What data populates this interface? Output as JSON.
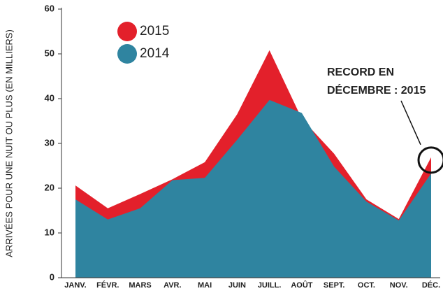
{
  "chart_data": {
    "type": "area",
    "ylabel": "ARRIVÉES POUR UNE NUIT OU PLUS (EN MILLIERS)",
    "categories": [
      "JANV.",
      "FÉVR.",
      "MARS",
      "AVR.",
      "MAI",
      "JUIN",
      "JUILL.",
      "AOÛT",
      "SEPT.",
      "OCT.",
      "NOV.",
      "DÉC."
    ],
    "series": [
      {
        "name": "2015",
        "color": "#e3202b",
        "values": [
          20.6,
          15.5,
          18.7,
          22,
          25.8,
          36.5,
          50.8,
          35.5,
          27.7,
          17.5,
          13.1,
          26.9
        ]
      },
      {
        "name": "2014",
        "color": "#2f84a0",
        "values": [
          17.5,
          13,
          15.5,
          21.8,
          22.3,
          30.8,
          39.7,
          36.8,
          24.8,
          17,
          12.8,
          23.3
        ]
      }
    ],
    "ylim": [
      0,
      60
    ],
    "yticks": [
      0,
      10,
      20,
      30,
      40,
      50,
      60
    ],
    "annotation": [
      "RECORD EN",
      "DÉCEMBRE : 2015"
    ]
  }
}
